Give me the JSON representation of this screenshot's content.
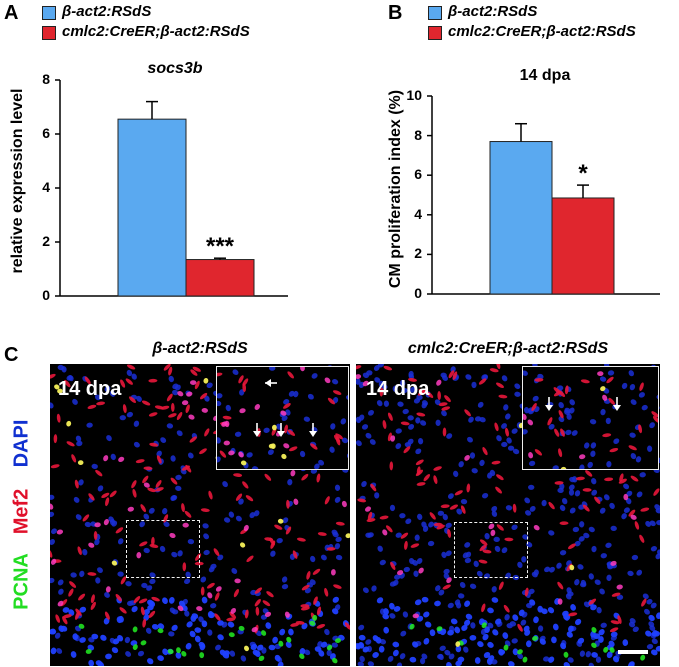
{
  "panels": {
    "a_letter": "A",
    "b_letter": "B",
    "c_letter": "C"
  },
  "legend": {
    "series1": "β-act2:RSdS",
    "series2": "cmlc2:CreER;β-act2:RSdS",
    "color1": "#5aa9f0",
    "color2": "#e0262e"
  },
  "chart_data": [
    {
      "type": "bar",
      "title": "socs3b",
      "xlabel": "",
      "ylabel": "relative expression level",
      "ylim": [
        0,
        8
      ],
      "yticks": [
        "0",
        "2",
        "4",
        "6",
        "8"
      ],
      "categories": [
        "β-act2:RSdS",
        "cmlc2:CreER;β-act2:RSdS"
      ],
      "values": [
        6.55,
        1.35
      ],
      "errors": [
        0.65,
        0.05
      ],
      "significance": [
        "",
        "***"
      ],
      "colors": [
        "#5aa9f0",
        "#e0262e"
      ]
    },
    {
      "type": "bar",
      "title": "14 dpa",
      "xlabel": "",
      "ylabel": "CM proliferation index (%)",
      "ylim": [
        0,
        10
      ],
      "yticks": [
        "0",
        "2",
        "4",
        "6",
        "8",
        "10"
      ],
      "categories": [
        "β-act2:RSdS",
        "cmlc2:CreER;β-act2:RSdS"
      ],
      "values": [
        7.7,
        4.85
      ],
      "errors": [
        0.9,
        0.65
      ],
      "significance": [
        "",
        "*"
      ],
      "colors": [
        "#5aa9f0",
        "#e0262e"
      ]
    }
  ],
  "micrographs": {
    "left_title": "β-act2:RSdS",
    "right_title": "cmlc2:CreER;β-act2:RSdS",
    "left_timepoint": "14 dpa",
    "right_timepoint": "14 dpa"
  },
  "stains": {
    "pcna": "PCNA",
    "mef2": "Mef2",
    "dapi": "DAPI",
    "pcna_color": "#22dd22",
    "mef2_color": "#e0102a",
    "dapi_color": "#1030d0"
  }
}
